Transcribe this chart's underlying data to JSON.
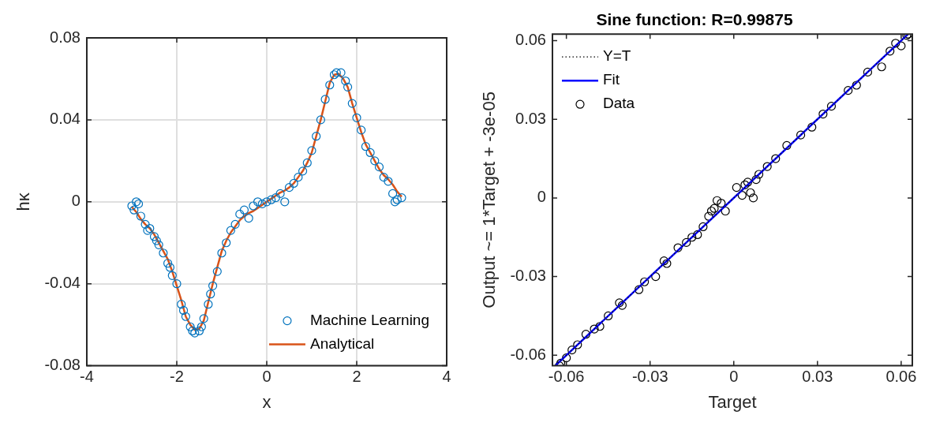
{
  "chart_data": [
    {
      "type": "scatter",
      "xlabel": "x",
      "ylabel": "hκ",
      "xlim": [
        -4,
        4
      ],
      "ylim": [
        -0.08,
        0.08
      ],
      "xticks": [
        -4,
        -2,
        0,
        2,
        4
      ],
      "yticks": [
        -0.08,
        -0.04,
        0,
        0.04,
        0.08
      ],
      "grid": true,
      "legend": "bottom right",
      "series": [
        {
          "name": "Machine Learning",
          "type": "scatter",
          "marker": "circle",
          "color": "#0072bd",
          "x": [
            -3.0,
            -2.95,
            -2.9,
            -2.85,
            -2.8,
            -2.7,
            -2.65,
            -2.6,
            -2.5,
            -2.45,
            -2.4,
            -2.3,
            -2.2,
            -2.15,
            -2.1,
            -2.0,
            -1.9,
            -1.85,
            -1.8,
            -1.7,
            -1.65,
            -1.6,
            -1.5,
            -1.45,
            -1.4,
            -1.3,
            -1.25,
            -1.2,
            -1.1,
            -1.0,
            -0.9,
            -0.8,
            -0.7,
            -0.6,
            -0.5,
            -0.4,
            -0.3,
            -0.2,
            -0.1,
            0.0,
            0.1,
            0.2,
            0.3,
            0.4,
            0.5,
            0.6,
            0.7,
            0.8,
            0.9,
            1.0,
            1.1,
            1.2,
            1.3,
            1.4,
            1.5,
            1.55,
            1.65,
            1.75,
            1.8,
            1.9,
            2.0,
            2.1,
            2.2,
            2.3,
            2.4,
            2.5,
            2.6,
            2.7,
            2.8,
            2.85,
            2.9,
            3.0
          ],
          "values": [
            -0.002,
            -0.004,
            0.0,
            -0.001,
            -0.007,
            -0.011,
            -0.014,
            -0.013,
            -0.017,
            -0.019,
            -0.021,
            -0.025,
            -0.03,
            -0.032,
            -0.036,
            -0.04,
            -0.05,
            -0.053,
            -0.056,
            -0.061,
            -0.063,
            -0.064,
            -0.063,
            -0.061,
            -0.057,
            -0.05,
            -0.045,
            -0.041,
            -0.034,
            -0.025,
            -0.02,
            -0.014,
            -0.011,
            -0.006,
            -0.004,
            -0.008,
            -0.002,
            0.0,
            -0.001,
            0.0,
            0.001,
            0.002,
            0.004,
            0.0,
            0.007,
            0.009,
            0.012,
            0.015,
            0.019,
            0.025,
            0.032,
            0.04,
            0.05,
            0.057,
            0.062,
            0.063,
            0.063,
            0.059,
            0.056,
            0.048,
            0.041,
            0.035,
            0.027,
            0.024,
            0.02,
            0.017,
            0.012,
            0.01,
            0.004,
            0.0,
            0.001,
            0.002
          ]
        },
        {
          "name": "Analytical",
          "type": "line",
          "line_style": "solid",
          "color": "#d95319",
          "x": [
            -3,
            -2.9,
            -2.8,
            -2.7,
            -2.6,
            -2.5,
            -2.4,
            -2.3,
            -2.2,
            -2.1,
            -2.0,
            -1.9,
            -1.8,
            -1.7,
            -1.6,
            -1.5,
            -1.4,
            -1.3,
            -1.2,
            -1.1,
            -1.0,
            -0.9,
            -0.8,
            -0.7,
            -0.6,
            -0.5,
            -0.4,
            -0.3,
            -0.2,
            -0.1,
            0,
            0.1,
            0.2,
            0.3,
            0.4,
            0.5,
            0.6,
            0.7,
            0.8,
            0.9,
            1.0,
            1.1,
            1.2,
            1.3,
            1.4,
            1.5,
            1.6,
            1.7,
            1.8,
            1.9,
            2.0,
            2.1,
            2.2,
            2.3,
            2.4,
            2.5,
            2.6,
            2.7,
            2.8,
            2.9,
            3
          ],
          "values": [
            -0.0025,
            -0.005,
            -0.0084,
            -0.011,
            -0.013,
            -0.016,
            -0.02,
            -0.024,
            -0.028,
            -0.034,
            -0.041,
            -0.048,
            -0.056,
            -0.06,
            -0.0625,
            -0.062,
            -0.058,
            -0.049,
            -0.04,
            -0.032,
            -0.024,
            -0.019,
            -0.015,
            -0.012,
            -0.009,
            -0.007,
            -0.0055,
            -0.0045,
            -0.003,
            -0.0015,
            0,
            0.0015,
            0.003,
            0.0045,
            0.0055,
            0.007,
            0.009,
            0.012,
            0.015,
            0.019,
            0.024,
            0.032,
            0.04,
            0.049,
            0.058,
            0.062,
            0.0625,
            0.06,
            0.056,
            0.048,
            0.041,
            0.034,
            0.028,
            0.024,
            0.02,
            0.016,
            0.013,
            0.011,
            0.0084,
            0.005,
            0.0025
          ]
        }
      ]
    },
    {
      "type": "scatter",
      "title": "Sine function: R=0.99875",
      "xlabel": "Target",
      "ylabel": "Output ~= 1*Target + -3e-05",
      "xlim": [
        -0.065,
        0.064
      ],
      "ylim": [
        -0.064,
        0.0625
      ],
      "xticks": [
        -0.06,
        -0.03,
        0,
        0.03,
        0.06
      ],
      "yticks": [
        -0.06,
        -0.03,
        0,
        0.03,
        0.06
      ],
      "legend": "top left",
      "series": [
        {
          "name": "Y=T",
          "type": "line",
          "line_style": "dotted",
          "color": "#000000",
          "x": [
            -0.064,
            0.0625
          ],
          "values": [
            -0.064,
            0.0625
          ]
        },
        {
          "name": "Fit",
          "type": "line",
          "line_style": "solid",
          "color": "#0000ff",
          "x": [
            -0.064,
            0.0625
          ],
          "values": [
            -0.064,
            0.0625
          ]
        },
        {
          "name": "Data",
          "type": "scatter",
          "marker": "circle",
          "color": "#000000",
          "x": [
            -0.0625,
            -0.062,
            -0.06,
            -0.058,
            -0.056,
            -0.053,
            -0.05,
            -0.048,
            -0.045,
            -0.041,
            -0.04,
            -0.034,
            -0.032,
            -0.028,
            -0.025,
            -0.024,
            -0.02,
            -0.017,
            -0.015,
            -0.013,
            -0.011,
            -0.009,
            -0.008,
            -0.007,
            -0.006,
            -0.0045,
            -0.003,
            0.001,
            0.003,
            0.004,
            0.005,
            0.006,
            0.007,
            0.008,
            0.009,
            0.012,
            0.015,
            0.019,
            0.024,
            0.028,
            0.032,
            0.035,
            0.041,
            0.044,
            0.048,
            0.053,
            0.056,
            0.058,
            0.06,
            0.0625,
            0.062
          ],
          "values": [
            -0.064,
            -0.063,
            -0.061,
            -0.058,
            -0.056,
            -0.052,
            -0.05,
            -0.049,
            -0.045,
            -0.04,
            -0.041,
            -0.035,
            -0.032,
            -0.03,
            -0.024,
            -0.025,
            -0.019,
            -0.017,
            -0.015,
            -0.014,
            -0.011,
            -0.007,
            -0.005,
            -0.004,
            -0.001,
            -0.002,
            -0.005,
            0.004,
            0.001,
            0.005,
            0.006,
            0.002,
            0.0,
            0.007,
            0.009,
            0.012,
            0.015,
            0.02,
            0.024,
            0.027,
            0.032,
            0.035,
            0.041,
            0.043,
            0.048,
            0.05,
            0.056,
            0.059,
            0.058,
            0.0625,
            0.062
          ]
        }
      ]
    }
  ]
}
